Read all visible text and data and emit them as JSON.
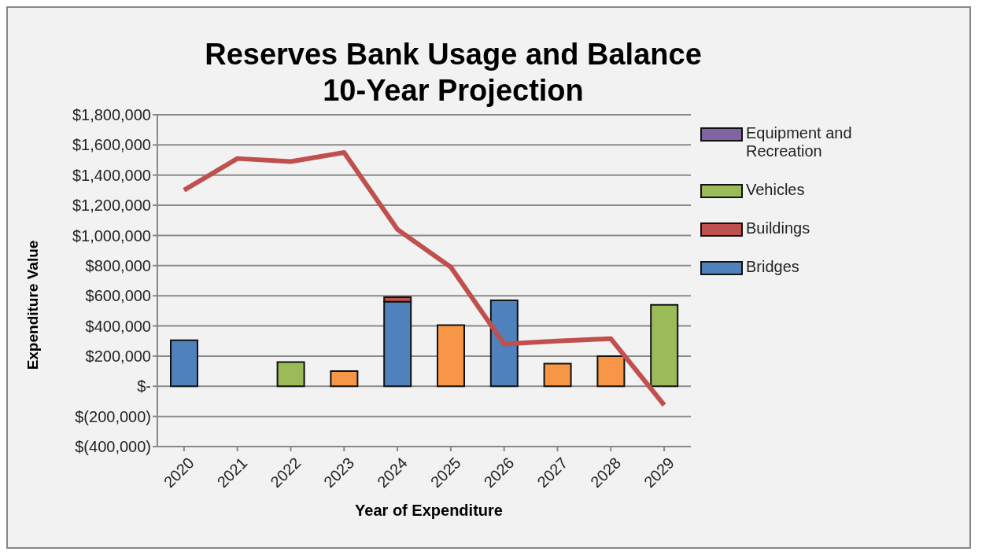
{
  "chart_data": {
    "type": "bar",
    "title": "Reserves Bank Usage and Balance\n10-Year Projection",
    "xlabel": "Year of Expenditure",
    "ylabel": "Expenditure Value",
    "categories": [
      "2020",
      "2021",
      "2022",
      "2023",
      "2024",
      "2025",
      "2026",
      "2027",
      "2028",
      "2029"
    ],
    "stacked": true,
    "grid": "y",
    "legend": "right",
    "marker": "none",
    "ylim": [
      -400000,
      1800000
    ],
    "yticks": [
      {
        "value": -400000,
        "label": "$(400,000)"
      },
      {
        "value": -200000,
        "label": "$(200,000)"
      },
      {
        "value": 0,
        "label": "$-"
      },
      {
        "value": 200000,
        "label": "$200,000"
      },
      {
        "value": 400000,
        "label": "$400,000"
      },
      {
        "value": 600000,
        "label": "$600,000"
      },
      {
        "value": 800000,
        "label": "$800,000"
      },
      {
        "value": 1000000,
        "label": "$1,000,000"
      },
      {
        "value": 1200000,
        "label": "$1,200,000"
      },
      {
        "value": 1400000,
        "label": "$1,400,000"
      },
      {
        "value": 1600000,
        "label": "$1,600,000"
      },
      {
        "value": 1800000,
        "label": "$1,800,000"
      }
    ],
    "series": [
      {
        "name": "Bridges",
        "color": "#4f81bd",
        "values": [
          305000,
          null,
          null,
          null,
          560000,
          null,
          570000,
          null,
          null,
          null
        ]
      },
      {
        "name": "Buildings",
        "color": "#c0504d",
        "values": [
          null,
          null,
          null,
          null,
          30000,
          null,
          null,
          null,
          null,
          null
        ]
      },
      {
        "name": "Vehicles",
        "color": "#9bbb59",
        "values": [
          null,
          null,
          160000,
          null,
          null,
          null,
          null,
          null,
          null,
          540000
        ]
      },
      {
        "name": "Equipment and Recreation",
        "color": "#8064a2",
        "values": [
          null,
          null,
          null,
          null,
          null,
          null,
          null,
          null,
          null,
          null
        ]
      },
      {
        "color": "#f79646",
        "values": [
          null,
          null,
          null,
          100000,
          null,
          405000,
          null,
          150000,
          200000,
          null
        ]
      },
      {
        "type": "line",
        "color": "#c0504d",
        "values": [
          1300000,
          1510000,
          1490000,
          1550000,
          1040000,
          790000,
          280000,
          300000,
          315000,
          -125000
        ]
      }
    ]
  }
}
